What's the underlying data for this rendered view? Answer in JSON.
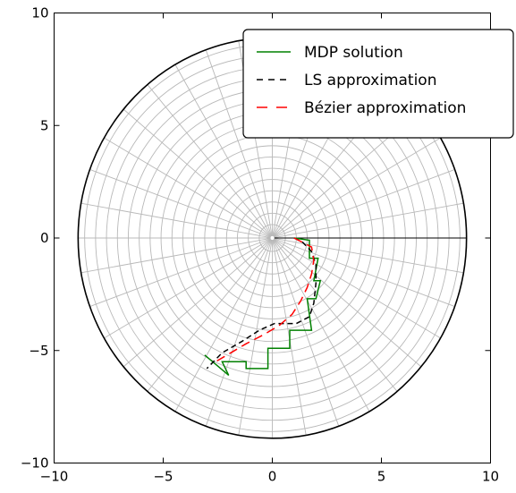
{
  "chart_data": {
    "type": "line",
    "title": "",
    "xlabel": "",
    "ylabel": "",
    "xlim": [
      -10,
      10
    ],
    "ylim": [
      -10,
      10
    ],
    "xticks": [
      -10,
      -5,
      0,
      5,
      10
    ],
    "yticks": [
      -10,
      -5,
      0,
      5,
      10
    ],
    "xtick_labels": [
      "−10",
      "−5",
      "0",
      "5",
      "10"
    ],
    "ytick_labels": [
      "−10",
      "−5",
      "0",
      "5",
      "10"
    ],
    "legend_position": "top-right",
    "polar_grid": {
      "inner_radius": 0.1,
      "outer_radius": 8.9,
      "ring_step": 0.5,
      "spoke_count": 36,
      "zero_angle_line": true
    },
    "series": [
      {
        "name": "MDP solution",
        "color": "#008000",
        "style": "solid",
        "points": [
          [
            1.0,
            0.0
          ],
          [
            1.7,
            -0.1
          ],
          [
            1.7,
            -0.9
          ],
          [
            2.1,
            -0.9
          ],
          [
            1.9,
            -1.9
          ],
          [
            2.2,
            -1.9
          ],
          [
            2.0,
            -2.7
          ],
          [
            1.6,
            -2.7
          ],
          [
            1.8,
            -4.1
          ],
          [
            0.8,
            -4.1
          ],
          [
            0.8,
            -4.9
          ],
          [
            -0.2,
            -4.9
          ],
          [
            -0.2,
            -5.8
          ],
          [
            -1.2,
            -5.8
          ],
          [
            -1.2,
            -5.5
          ],
          [
            -2.3,
            -5.5
          ],
          [
            -2.0,
            -6.1
          ],
          [
            -3.1,
            -5.2
          ]
        ]
      },
      {
        "name": "LS approximation",
        "color": "#000000",
        "style": "dashed",
        "points": [
          [
            1.0,
            0.0
          ],
          [
            1.4,
            -0.2
          ],
          [
            1.8,
            -0.6
          ],
          [
            2.0,
            -1.2
          ],
          [
            2.0,
            -2.0
          ],
          [
            1.9,
            -2.9
          ],
          [
            1.7,
            -3.5
          ],
          [
            1.1,
            -3.8
          ],
          [
            0.1,
            -3.8
          ],
          [
            -0.6,
            -4.1
          ],
          [
            -1.4,
            -4.6
          ],
          [
            -2.3,
            -5.1
          ],
          [
            -3.0,
            -5.8
          ]
        ]
      },
      {
        "name": "Bézier approximation",
        "color": "#ff0000",
        "style": "dashed",
        "points": [
          [
            1.0,
            0.0
          ],
          [
            1.8,
            -0.4
          ],
          [
            1.9,
            -1.0
          ],
          [
            1.8,
            -1.6
          ],
          [
            1.6,
            -2.2
          ],
          [
            1.3,
            -2.8
          ],
          [
            0.9,
            -3.4
          ],
          [
            0.3,
            -3.9
          ],
          [
            -0.4,
            -4.3
          ],
          [
            -1.2,
            -4.7
          ],
          [
            -1.9,
            -5.1
          ],
          [
            -2.6,
            -5.5
          ]
        ]
      }
    ]
  }
}
